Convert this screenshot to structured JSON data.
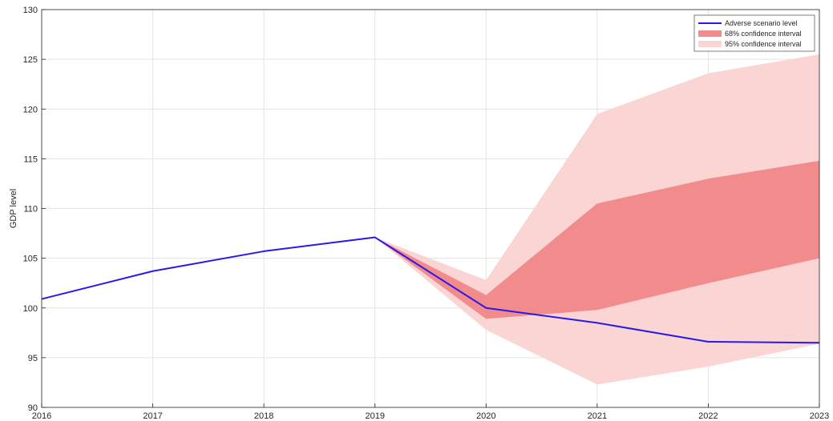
{
  "chart_data": {
    "type": "line",
    "title": "",
    "xlabel": "",
    "ylabel": "GDP level",
    "x": [
      2016,
      2017,
      2018,
      2019,
      2020,
      2021,
      2022,
      2023
    ],
    "xlim": [
      2016,
      2023
    ],
    "ylim": [
      90,
      130
    ],
    "yticks": [
      90,
      95,
      100,
      105,
      110,
      115,
      120,
      125,
      130
    ],
    "grid": true,
    "legend_position": "top-right",
    "series": [
      {
        "name": "Adverse scenario level",
        "kind": "line",
        "color": "#2a1ae6",
        "x": [
          2016,
          2017,
          2018,
          2019,
          2020,
          2021,
          2022,
          2023
        ],
        "values": [
          100.9,
          103.7,
          105.7,
          107.1,
          100.0,
          98.5,
          96.6,
          96.5
        ]
      },
      {
        "name": "68% confidence interval",
        "kind": "band",
        "color": "#f28b8b",
        "x": [
          2019,
          2020,
          2021,
          2022,
          2023
        ],
        "lower": [
          107.1,
          98.9,
          99.8,
          102.5,
          105.0
        ],
        "upper": [
          107.1,
          101.3,
          110.5,
          113.0,
          114.8
        ]
      },
      {
        "name": "95% confidence interval",
        "kind": "band",
        "color": "#fbd4d4",
        "x": [
          2019,
          2020,
          2021,
          2022,
          2023
        ],
        "lower": [
          107.1,
          97.8,
          92.3,
          94.1,
          96.4
        ],
        "upper": [
          107.1,
          102.8,
          119.5,
          123.6,
          125.5
        ]
      }
    ]
  }
}
